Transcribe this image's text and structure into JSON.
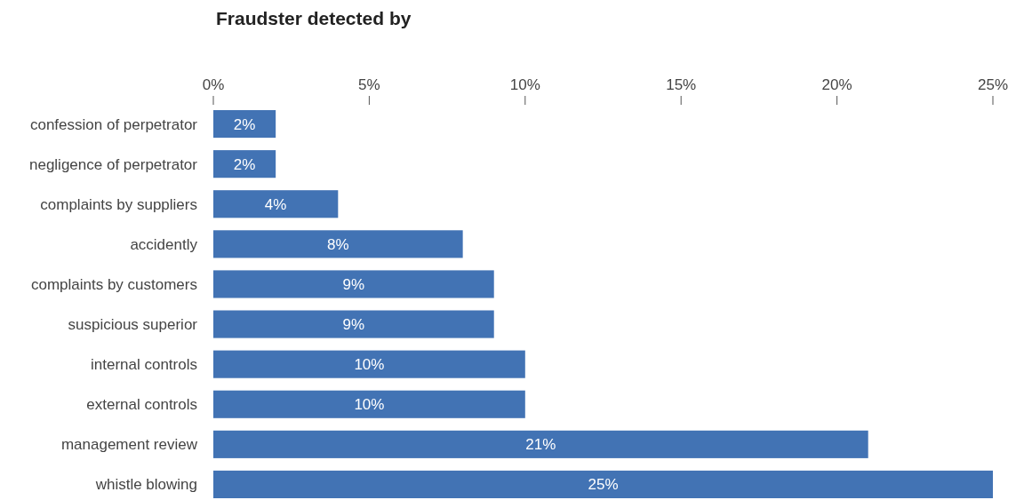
{
  "chart_data": {
    "type": "bar",
    "orientation": "horizontal",
    "title": "Fraudster detected by",
    "categories": [
      "confession of perpetrator",
      "negligence of perpetrator",
      "complaints by suppliers",
      "accidently",
      "complaints by customers",
      "suspicious superior",
      "internal controls",
      "external controls",
      "management review",
      "whistle blowing"
    ],
    "values": [
      2,
      2,
      4,
      8,
      9,
      9,
      10,
      10,
      21,
      25
    ],
    "value_labels": [
      "2%",
      "2%",
      "4%",
      "8%",
      "9%",
      "9%",
      "10%",
      "10%",
      "21%",
      "25%"
    ],
    "color": "#4273b4",
    "xlim": [
      0,
      25
    ],
    "xticks": [
      {
        "value": 0,
        "label": "0%"
      },
      {
        "value": 5,
        "label": "5%"
      },
      {
        "value": 10,
        "label": "10%"
      },
      {
        "value": 15,
        "label": "15%"
      },
      {
        "value": 20,
        "label": "20%"
      },
      {
        "value": 25,
        "label": "25%"
      }
    ],
    "grid": false
  }
}
